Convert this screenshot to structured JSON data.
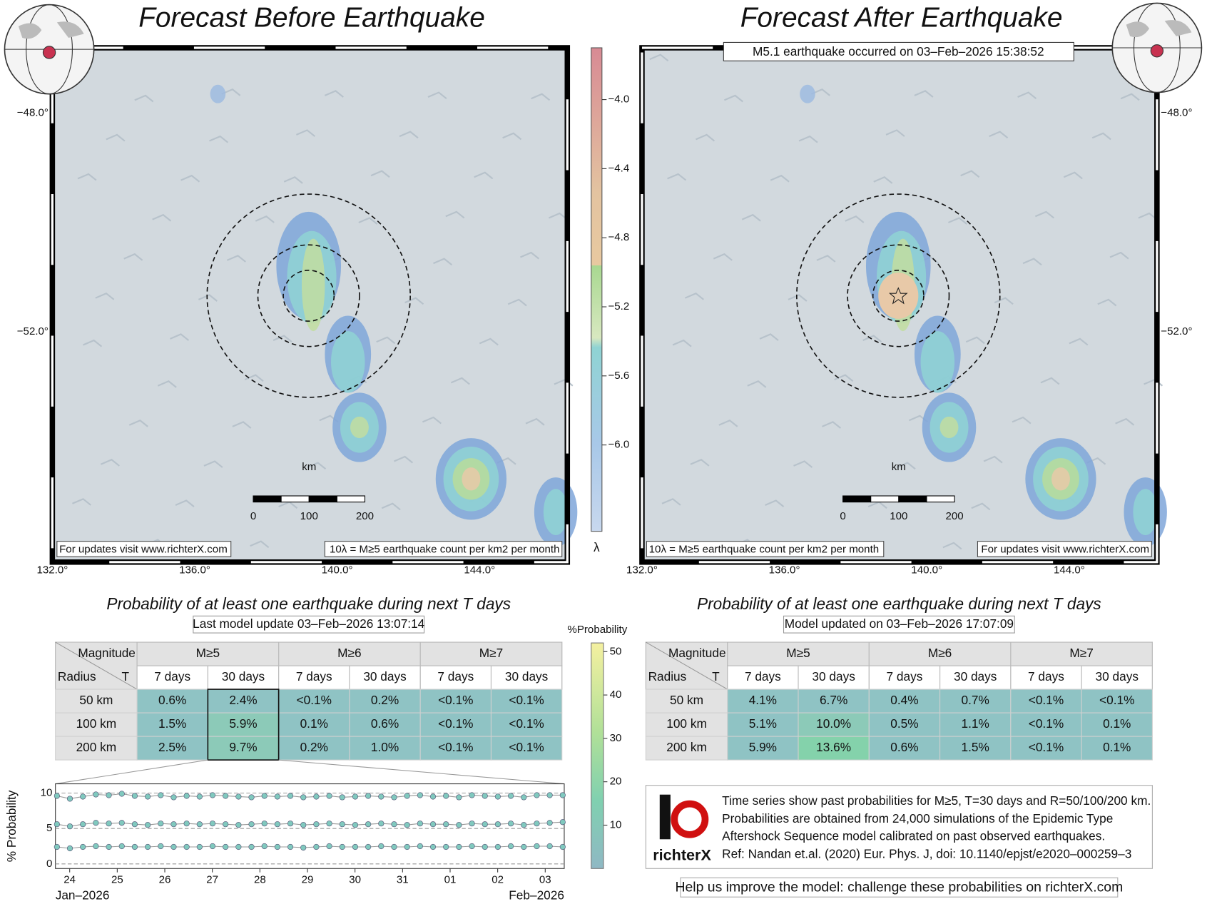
{
  "maps": [
    {
      "title": "Forecast Before Earthquake",
      "note_left": "For updates visit www.richterX.com",
      "note_right": "10λ = M≥5 earthquake count per km2 per month",
      "scale_unit": "km",
      "scale_labels": [
        "0",
        "100",
        "200"
      ]
    },
    {
      "title": "Forecast After Earthquake",
      "event": "M5.1 earthquake occurred on 03–Feb–2026 15:38:52",
      "note_left": "10λ = M≥5 earthquake count per km2 per month",
      "note_right": "For updates visit www.richterX.com",
      "scale_unit": "km",
      "scale_labels": [
        "0",
        "100",
        "200"
      ]
    }
  ],
  "lat_labels": [
    "−48.0°",
    "−52.0°"
  ],
  "lon_labels": [
    "132.0°",
    "136.0°",
    "140.0°",
    "144.0°"
  ],
  "lambda_colorbar": {
    "label": "λ",
    "lim": [
      -3.7,
      -6.5
    ],
    "ticks": [
      {
        "value": -4.0,
        "label": "−4.0"
      },
      {
        "value": -4.4,
        "label": "−4.4"
      },
      {
        "value": -4.8,
        "label": "−4.8"
      },
      {
        "value": -5.2,
        "label": "−5.2"
      },
      {
        "value": -5.6,
        "label": "−5.6"
      },
      {
        "value": -6.0,
        "label": "−6.0"
      }
    ]
  },
  "table_header": {
    "magnitude": "Magnitude",
    "radius": "Radius",
    "t": "T",
    "groups": [
      "M≥5",
      "M≥6",
      "M≥7"
    ],
    "periods": [
      "7 days",
      "30 days",
      "7 days",
      "30 days",
      "7 days",
      "30 days"
    ]
  },
  "tables": [
    {
      "title": "Probability of at least one earthquake during next T days",
      "subtitle": "Last model update 03–Feb–2026 13:07:14",
      "rows": [
        [
          "50 km",
          "0.6%",
          "2.4%",
          "<0.1%",
          "0.2%",
          "<0.1%",
          "<0.1%"
        ],
        [
          "100 km",
          "1.5%",
          "5.9%",
          "0.1%",
          "0.6%",
          "<0.1%",
          "<0.1%"
        ],
        [
          "200 km",
          "2.5%",
          "9.7%",
          "0.2%",
          "1.0%",
          "<0.1%",
          "<0.1%"
        ]
      ]
    },
    {
      "title": "Probability of at least one earthquake during next T days",
      "subtitle": "Model updated on 03–Feb–2026 17:07:09",
      "rows": [
        [
          "50 km",
          "4.1%",
          "6.7%",
          "0.4%",
          "0.7%",
          "<0.1%",
          "<0.1%"
        ],
        [
          "100 km",
          "5.1%",
          "10.0%",
          "0.5%",
          "1.1%",
          "<0.1%",
          "0.1%"
        ],
        [
          "200 km",
          "5.9%",
          "13.6%",
          "0.6%",
          "1.5%",
          "<0.1%",
          "0.1%"
        ]
      ]
    }
  ],
  "prob_colorbar": {
    "label": "%Probability",
    "ylim": [
      0,
      52
    ],
    "yticks": [
      10,
      20,
      30,
      40,
      50
    ]
  },
  "time_series": {
    "type": "line",
    "ylabel": "% Probability",
    "ylim": [
      -0.65,
      11.3
    ],
    "yticks": [
      0,
      5,
      10
    ],
    "xlim": [
      -0.3,
      10.4
    ],
    "xticks": [
      {
        "value": 0,
        "label": "24"
      },
      {
        "value": 1,
        "label": "25"
      },
      {
        "value": 2,
        "label": "26"
      },
      {
        "value": 3,
        "label": "27"
      },
      {
        "value": 4,
        "label": "28"
      },
      {
        "value": 5,
        "label": "29"
      },
      {
        "value": 6,
        "label": "30"
      },
      {
        "value": 7,
        "label": "31"
      },
      {
        "value": 8,
        "label": "01"
      },
      {
        "value": 9,
        "label": "02"
      },
      {
        "value": 10,
        "label": "03"
      }
    ],
    "month_labels": [
      "Jan–2026",
      "Feb–2026"
    ],
    "color": "#80c9be",
    "series": [
      {
        "values": [
          9.6,
          9.2,
          9.5,
          9.8,
          9.7,
          9.9,
          9.6,
          9.5,
          9.7,
          9.4,
          9.6,
          9.5,
          9.7,
          9.6,
          9.5,
          9.4,
          9.6,
          9.5,
          9.6,
          9.4,
          9.5,
          9.6,
          9.4,
          9.5,
          9.6,
          9.5,
          9.4,
          9.6,
          9.7,
          9.5,
          9.6,
          9.4,
          9.7,
          9.6,
          9.5,
          9.6,
          9.4,
          9.7,
          9.7,
          9.7
        ]
      },
      {
        "values": [
          5.6,
          5.3,
          5.6,
          5.8,
          5.7,
          5.8,
          5.6,
          5.5,
          5.7,
          5.6,
          5.7,
          5.6,
          5.7,
          5.6,
          5.5,
          5.6,
          5.7,
          5.6,
          5.7,
          5.5,
          5.6,
          5.7,
          5.6,
          5.5,
          5.6,
          5.7,
          5.6,
          5.5,
          5.7,
          5.6,
          5.6,
          5.5,
          5.7,
          5.6,
          5.6,
          5.7,
          5.5,
          5.7,
          5.8,
          5.9
        ]
      },
      {
        "values": [
          2.4,
          2.2,
          2.4,
          2.5,
          2.4,
          2.5,
          2.4,
          2.4,
          2.5,
          2.4,
          2.4,
          2.4,
          2.5,
          2.4,
          2.4,
          2.4,
          2.5,
          2.4,
          2.4,
          2.3,
          2.4,
          2.5,
          2.4,
          2.4,
          2.4,
          2.5,
          2.4,
          2.4,
          2.5,
          2.4,
          2.4,
          2.4,
          2.5,
          2.4,
          2.4,
          2.5,
          2.4,
          2.5,
          2.5,
          2.4
        ]
      }
    ]
  },
  "info": {
    "lines": [
      "Time series show past probabilities for M≥5, T=30 days and R=50/100/200 km.",
      "Probabilities are obtained from 24,000 simulations of the Epidemic Type",
      "Aftershock Sequence model calibrated on past observed earthquakes.",
      "Ref: Nandan et.al. (2020) Eur. Phys. J, doi: 10.1140/epjst/e2020–000259–3"
    ],
    "logo": "richterX"
  },
  "footer": "Help us improve the model: challenge these probabilities on richterX.com"
}
